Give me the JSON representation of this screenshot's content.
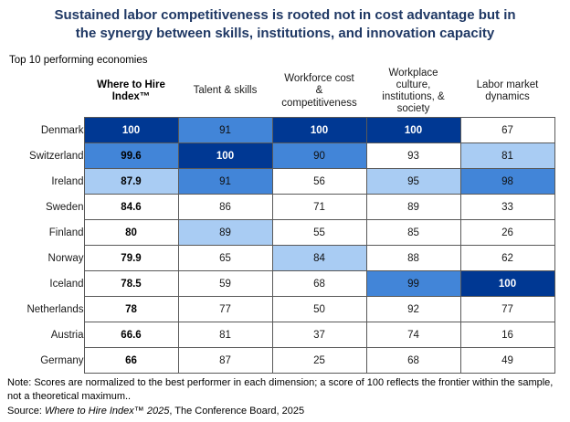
{
  "title": "Sustained labor competitiveness is rooted not in cost advantage but in\nthe synergy between skills, institutions, and innovation capacity",
  "subtitle": "Top 10 performing economies",
  "table": {
    "column_headers": [
      "Where to Hire\nIndex™",
      "Talent & skills",
      "Workforce cost\n&\ncompetitiveness",
      "Workplace\nculture,\ninstitutions, &\nsociety",
      "Labor market\ndynamics"
    ],
    "rows": [
      {
        "country": "Denmark",
        "display": [
          "100",
          "91",
          "100",
          "100",
          "67"
        ],
        "shades": [
          "dark",
          "mid",
          "dark",
          "dark",
          "white"
        ]
      },
      {
        "country": "Switzerland",
        "display": [
          "99.6",
          "100",
          "90",
          "93",
          "81"
        ],
        "shades": [
          "mid",
          "dark",
          "mid",
          "white",
          "light"
        ]
      },
      {
        "country": "Ireland",
        "display": [
          "87.9",
          "91",
          "56",
          "95",
          "98"
        ],
        "shades": [
          "light",
          "mid",
          "white",
          "light",
          "mid"
        ]
      },
      {
        "country": "Sweden",
        "display": [
          "84.6",
          "86",
          "71",
          "89",
          "33"
        ],
        "shades": [
          "white",
          "white",
          "white",
          "white",
          "white"
        ]
      },
      {
        "country": "Finland",
        "display": [
          "80",
          "89",
          "55",
          "85",
          "26"
        ],
        "shades": [
          "white",
          "light",
          "white",
          "white",
          "white"
        ]
      },
      {
        "country": "Norway",
        "display": [
          "79.9",
          "65",
          "84",
          "88",
          "62"
        ],
        "shades": [
          "white",
          "white",
          "light",
          "white",
          "white"
        ]
      },
      {
        "country": "Iceland",
        "display": [
          "78.5",
          "59",
          "68",
          "99",
          "100"
        ],
        "shades": [
          "white",
          "white",
          "white",
          "mid",
          "dark"
        ]
      },
      {
        "country": "Netherlands",
        "display": [
          "78",
          "77",
          "50",
          "92",
          "77"
        ],
        "shades": [
          "white",
          "white",
          "white",
          "white",
          "white"
        ]
      },
      {
        "country": "Austria",
        "display": [
          "66.6",
          "81",
          "37",
          "74",
          "16"
        ],
        "shades": [
          "white",
          "white",
          "white",
          "white",
          "white"
        ]
      },
      {
        "country": "Germany",
        "display": [
          "66",
          "87",
          "25",
          "68",
          "49"
        ],
        "shades": [
          "white",
          "white",
          "white",
          "white",
          "white"
        ]
      }
    ]
  },
  "notes": {
    "note": "Note: Scores are normalized to the best performer in each dimension; a score of 100 reflects the frontier within the sample, not a theoretical maximum..",
    "source_prefix": "Source: ",
    "source_italic": "Where to Hire Index™ 2025",
    "source_rest": ", The Conference Board, 2025"
  },
  "colors": {
    "title_text": "#1f3864",
    "dark_cell": "#003893",
    "mid_cell": "#4285d8",
    "light_cell": "#a9ccf3",
    "grid_border": "#595959"
  },
  "chart_data": {
    "type": "heatmap",
    "title": "Sustained labor competitiveness is rooted not in cost advantage but in the synergy between skills, institutions, and innovation capacity",
    "subtitle": "Top 10 performing economies",
    "columns": [
      "Where to Hire Index™",
      "Talent & skills",
      "Workforce cost & competitiveness",
      "Workplace culture, institutions, & society",
      "Labor market dynamics"
    ],
    "categories": [
      "Denmark",
      "Switzerland",
      "Ireland",
      "Sweden",
      "Finland",
      "Norway",
      "Iceland",
      "Netherlands",
      "Austria",
      "Germany"
    ],
    "values": [
      [
        100,
        91,
        100,
        100,
        67
      ],
      [
        99.6,
        100,
        90,
        93,
        81
      ],
      [
        87.9,
        91,
        56,
        95,
        98
      ],
      [
        84.6,
        86,
        71,
        89,
        33
      ],
      [
        80,
        89,
        55,
        85,
        26
      ],
      [
        79.9,
        65,
        84,
        88,
        62
      ],
      [
        78.5,
        59,
        68,
        99,
        100
      ],
      [
        78,
        77,
        50,
        92,
        77
      ],
      [
        66.6,
        81,
        37,
        74,
        16
      ],
      [
        66,
        87,
        25,
        68,
        49
      ]
    ],
    "value_range": [
      0,
      100
    ],
    "shading": "cells with higher relative scores shaded darker blue; white = lower score",
    "note": "Scores are normalized to the best performer in each dimension; a score of 100 reflects the frontier within the sample, not a theoretical maximum",
    "source": "Where to Hire Index™ 2025, The Conference Board, 2025"
  }
}
